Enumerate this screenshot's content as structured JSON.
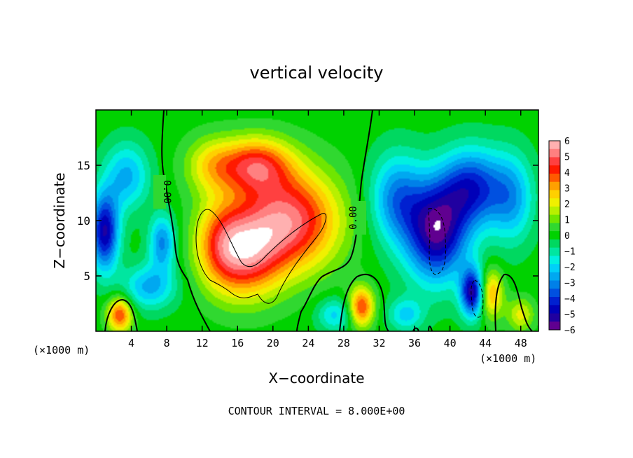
{
  "chart_data": {
    "type": "heatmap",
    "title": "vertical velocity",
    "xlabel": "X−coordinate",
    "ylabel": "Z−coordinate",
    "x_scale_note": "(×1000 m)",
    "x_scale_note_right": "(×1000 m)",
    "footer": "CONTOUR INTERVAL = 8.000E+00",
    "xlim": [
      0,
      50
    ],
    "ylim": [
      0,
      20
    ],
    "x_ticks": [
      4,
      8,
      12,
      16,
      20,
      24,
      28,
      32,
      36,
      40,
      44,
      48
    ],
    "y_ticks": [
      5,
      10,
      15
    ],
    "colorbar": {
      "ticks": [
        "6",
        "5",
        "4",
        "3",
        "2",
        "1",
        "0",
        "−1",
        "−2",
        "−3",
        "−4",
        "−5",
        "−6"
      ],
      "colors": [
        "#ffb0b0",
        "#ff8080",
        "#ff4040",
        "#ff1a00",
        "#ff5a00",
        "#ffa000",
        "#ffd000",
        "#f0f000",
        "#b8f000",
        "#70e600",
        "#30d830",
        "#00d200",
        "#00d860",
        "#00e6a0",
        "#00f0e0",
        "#00d0f8",
        "#00a8f0",
        "#0080e8",
        "#0050e0",
        "#0020d0",
        "#0000b8",
        "#2000a0",
        "#600090"
      ]
    },
    "contour_labels": [
      "0.00",
      "0.00"
    ],
    "fields": [
      {
        "x": 22,
        "z": 10,
        "w": 5,
        "sx": 5.5,
        "sz": 4.5
      },
      {
        "x": 17,
        "z": 7,
        "w": 4,
        "sx": 4,
        "sz": 4
      },
      {
        "x": 18,
        "z": 15,
        "w": 4,
        "sx": 4,
        "sz": 2.5
      },
      {
        "x": 14,
        "z": 8,
        "w": 2.5,
        "sx": 3,
        "sz": 4
      },
      {
        "x": 13,
        "z": 15,
        "w": 2,
        "sx": 3,
        "sz": 2.5
      },
      {
        "x": 2.7,
        "z": 1.5,
        "w": 4,
        "sx": 1.4,
        "sz": 1.6
      },
      {
        "x": 30,
        "z": 2.2,
        "w": 4,
        "sx": 1.4,
        "sz": 1.8
      },
      {
        "x": 44.7,
        "z": 3.4,
        "w": 3,
        "sx": 1.3,
        "sz": 2.2
      },
      {
        "x": 48,
        "z": 1.5,
        "w": 2,
        "sx": 1.5,
        "sz": 1.5
      },
      {
        "x": 38.5,
        "z": 9,
        "w": -5.5,
        "sx": 3.5,
        "sz": 4.5
      },
      {
        "x": 42.5,
        "z": 13,
        "w": -4,
        "sx": 3.5,
        "sz": 3.5
      },
      {
        "x": 42.5,
        "z": 3.5,
        "w": -5,
        "sx": 1.3,
        "sz": 2.2
      },
      {
        "x": 34,
        "z": 12,
        "w": -3,
        "sx": 3,
        "sz": 4
      },
      {
        "x": 47,
        "z": 12,
        "w": -2.5,
        "sx": 2.5,
        "sz": 4
      },
      {
        "x": 1,
        "z": 9,
        "w": -5,
        "sx": 1.6,
        "sz": 3.5
      },
      {
        "x": 3.5,
        "z": 14,
        "w": -2.5,
        "sx": 2.5,
        "sz": 3
      },
      {
        "x": 7.5,
        "z": 8,
        "w": -3,
        "sx": 1.5,
        "sz": 2.5
      },
      {
        "x": 6,
        "z": 4,
        "w": -2.5,
        "sx": 3,
        "sz": 2
      },
      {
        "x": 27,
        "z": 1.5,
        "w": -2,
        "sx": 2,
        "sz": 1.5
      },
      {
        "x": 35,
        "z": 1.5,
        "w": -2,
        "sx": 2,
        "sz": 1.5
      }
    ]
  }
}
